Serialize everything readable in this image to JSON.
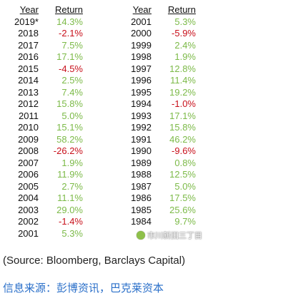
{
  "headers": {
    "year": "Year",
    "return": "Return"
  },
  "left_rows": [
    {
      "year": "2019*",
      "ret": "14.3%"
    },
    {
      "year": "2018",
      "ret": "-2.1%"
    },
    {
      "year": "2017",
      "ret": "7.5%"
    },
    {
      "year": "2016",
      "ret": "17.1%"
    },
    {
      "year": "2015",
      "ret": "-4.5%"
    },
    {
      "year": "2014",
      "ret": "2.5%"
    },
    {
      "year": "2013",
      "ret": "7.4%"
    },
    {
      "year": "2012",
      "ret": "15.8%"
    },
    {
      "year": "2011",
      "ret": "5.0%"
    },
    {
      "year": "2010",
      "ret": "15.1%"
    },
    {
      "year": "2009",
      "ret": "58.2%"
    },
    {
      "year": "2008",
      "ret": "-26.2%"
    },
    {
      "year": "2007",
      "ret": "1.9%"
    },
    {
      "year": "2006",
      "ret": "11.9%"
    },
    {
      "year": "2005",
      "ret": "2.7%"
    },
    {
      "year": "2004",
      "ret": "11.1%"
    },
    {
      "year": "2003",
      "ret": "29.0%"
    },
    {
      "year": "2002",
      "ret": "-1.4%"
    },
    {
      "year": "2001",
      "ret": "5.3%"
    }
  ],
  "right_rows": [
    {
      "year": "2001",
      "ret": "5.3%"
    },
    {
      "year": "2000",
      "ret": "-5.9%"
    },
    {
      "year": "1999",
      "ret": "2.4%"
    },
    {
      "year": "1998",
      "ret": "1.9%"
    },
    {
      "year": "1997",
      "ret": "12.8%"
    },
    {
      "year": "1996",
      "ret": "11.4%"
    },
    {
      "year": "1995",
      "ret": "19.2%"
    },
    {
      "year": "1994",
      "ret": "-1.0%"
    },
    {
      "year": "1993",
      "ret": "17.1%"
    },
    {
      "year": "1992",
      "ret": "15.8%"
    },
    {
      "year": "1991",
      "ret": "46.2%"
    },
    {
      "year": "1990",
      "ret": "-9.6%"
    },
    {
      "year": "1989",
      "ret": "0.8%"
    },
    {
      "year": "1988",
      "ret": "12.5%"
    },
    {
      "year": "1987",
      "ret": "5.0%"
    },
    {
      "year": "1986",
      "ret": "17.5%"
    },
    {
      "year": "1985",
      "ret": "25.6%"
    },
    {
      "year": "1984",
      "ret": "9.7%"
    }
  ],
  "colors": {
    "positive": "#7cba48",
    "negative": "#c8101b"
  },
  "source": "(Source: Bloomberg, Barclays Capital)",
  "cn_source": "信息来源：彭博资讯，巴克莱资本",
  "watermark": "市川新田三丁目"
}
